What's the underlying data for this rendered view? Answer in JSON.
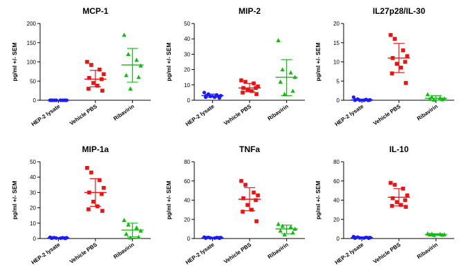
{
  "colors": {
    "HEP-2 lysate": "#1a1aff",
    "Vehicle PBS": "#ee1111",
    "Ribavirin": "#11bb11",
    "axis": "#000000"
  },
  "chart_data": [
    {
      "type": "scatter",
      "title": "MCP-1",
      "ylabel": "pg/ml +/- SEM",
      "ylim": [
        0,
        200
      ],
      "yticks": [
        "0",
        "50",
        "100",
        "150",
        "200"
      ],
      "categories": [
        "HEP-2 lysate",
        "Vehicle PBS",
        "Ribavirin"
      ],
      "series": [
        {
          "name": "HEP-2 lysate",
          "marker": "circle",
          "values": [
            0,
            0,
            0,
            0,
            0,
            0,
            0,
            0,
            0,
            0
          ],
          "mean": 0,
          "err": [
            0,
            0
          ]
        },
        {
          "name": "Vehicle PBS",
          "marker": "square",
          "values": [
            100,
            92,
            80,
            68,
            58,
            55,
            45,
            38,
            30,
            25
          ],
          "mean": 55,
          "err": [
            35,
            78
          ]
        },
        {
          "name": "Ribavirin",
          "marker": "triangle",
          "values": [
            170,
            120,
            105,
            90,
            65,
            60,
            30
          ],
          "mean": 92,
          "err": [
            47,
            135
          ]
        }
      ]
    },
    {
      "type": "scatter",
      "title": "MIP-2",
      "ylabel": "pg/ml +/- SEM",
      "ylim": [
        0,
        50
      ],
      "yticks": [
        "0",
        "10",
        "20",
        "30",
        "40",
        "50"
      ],
      "categories": [
        "HEP-2 lysate",
        "Vehicle PBS",
        "Ribavirin"
      ],
      "series": [
        {
          "name": "HEP-2 lysate",
          "marker": "circle",
          "values": [
            5,
            4,
            3.5,
            3,
            3,
            2.5,
            2.5,
            2,
            2,
            1.5
          ],
          "mean": 3,
          "err": [
            2,
            4
          ]
        },
        {
          "name": "Vehicle PBS",
          "marker": "square",
          "values": [
            13,
            12,
            11,
            9,
            8,
            8,
            7,
            6,
            5,
            4
          ],
          "mean": 8,
          "err": [
            5.5,
            11
          ]
        },
        {
          "name": "Ribavirin",
          "marker": "triangle",
          "values": [
            39,
            20,
            18,
            15,
            12,
            6,
            4
          ],
          "mean": 15,
          "err": [
            3,
            26.5
          ]
        }
      ]
    },
    {
      "type": "scatter",
      "title": "IL27p28/IL-30",
      "ylabel": "pg/ml +/- SEM",
      "ylim": [
        0,
        20
      ],
      "yticks": [
        "0",
        "5",
        "10",
        "15",
        "20"
      ],
      "categories": [
        "HEP-2 lysate",
        "Vehicle PBS",
        "Ribavirin"
      ],
      "series": [
        {
          "name": "HEP-2 lysate",
          "marker": "circle",
          "values": [
            0.8,
            0.3,
            0.2,
            0.1,
            0.1,
            0,
            0,
            0,
            0,
            0
          ],
          "mean": 0.1,
          "err": [
            0,
            0.3
          ]
        },
        {
          "name": "Vehicle PBS",
          "marker": "square",
          "values": [
            17,
            16,
            13,
            11.5,
            11,
            10,
            9.5,
            8.5,
            7,
            4.5
          ],
          "mean": 11,
          "err": [
            7.2,
            14.8
          ]
        },
        {
          "name": "Ribavirin",
          "marker": "triangle",
          "values": [
            1.5,
            0.8,
            0.6,
            0.4,
            0.3,
            0.2,
            0.1
          ],
          "mean": 0.5,
          "err": [
            0,
            1.2
          ]
        }
      ]
    },
    {
      "type": "scatter",
      "title": "MIP-1a",
      "ylabel": "pg/ml +/- SEM",
      "ylim": [
        0,
        50
      ],
      "yticks": [
        "0",
        "10",
        "20",
        "30",
        "40",
        "50"
      ],
      "categories": [
        "HEP-2 lysate",
        "Vehicle PBS",
        "Ribavirin"
      ],
      "series": [
        {
          "name": "HEP-2 lysate",
          "marker": "circle",
          "values": [
            0.8,
            0.6,
            0.5,
            0.5,
            0.4,
            0.3,
            0.3,
            0.2,
            0.2,
            0.1
          ],
          "mean": 0.4,
          "err": [
            0.2,
            0.6
          ]
        },
        {
          "name": "Vehicle PBS",
          "marker": "square",
          "values": [
            46,
            43,
            38,
            33,
            30,
            29,
            24,
            21,
            19,
            18
          ],
          "mean": 30,
          "err": [
            21,
            39
          ]
        },
        {
          "name": "Ribavirin",
          "marker": "triangle",
          "values": [
            12,
            9,
            7,
            5,
            3,
            1,
            0.5
          ],
          "mean": 5.5,
          "err": [
            1,
            10
          ]
        }
      ]
    },
    {
      "type": "scatter",
      "title": "TNFa",
      "ylabel": "pg/ml +/- SEM",
      "ylim": [
        0,
        80
      ],
      "yticks": [
        "0",
        "20",
        "40",
        "60",
        "80"
      ],
      "categories": [
        "HEP-2 lysate",
        "Vehicle PBS",
        "Ribavirin"
      ],
      "series": [
        {
          "name": "HEP-2 lysate",
          "marker": "circle",
          "values": [
            1.5,
            1.2,
            1,
            1,
            0.8,
            0.8,
            0.6,
            0.5,
            0.4,
            0.3
          ],
          "mean": 0.8,
          "err": [
            0.3,
            1.3
          ]
        },
        {
          "name": "Vehicle PBS",
          "marker": "square",
          "values": [
            60,
            56,
            48,
            45,
            42,
            40,
            35,
            30,
            28,
            18
          ],
          "mean": 41,
          "err": [
            29,
            53
          ]
        },
        {
          "name": "Ribavirin",
          "marker": "triangle",
          "values": [
            15,
            13,
            12,
            10,
            8,
            6,
            4
          ],
          "mean": 10,
          "err": [
            5,
            14
          ]
        }
      ]
    },
    {
      "type": "scatter",
      "title": "IL-10",
      "ylabel": "pg/ml +/- SEM",
      "ylim": [
        0,
        80
      ],
      "yticks": [
        "0",
        "20",
        "40",
        "60",
        "80"
      ],
      "categories": [
        "HEP-2 lysate",
        "Vehicle PBS",
        "Ribavirin"
      ],
      "series": [
        {
          "name": "HEP-2 lysate",
          "marker": "circle",
          "values": [
            2,
            1.5,
            1.2,
            1,
            0.8,
            0.8,
            0.6,
            0.5,
            0.4,
            0.3
          ],
          "mean": 1,
          "err": [
            0.3,
            1.7
          ]
        },
        {
          "name": "Vehicle PBS",
          "marker": "square",
          "values": [
            58,
            56,
            52,
            45,
            42,
            40,
            38,
            35,
            34,
            33
          ],
          "mean": 43,
          "err": [
            34,
            52
          ]
        },
        {
          "name": "Ribavirin",
          "marker": "triangle",
          "values": [
            5,
            4.8,
            4.5,
            4.2,
            4,
            3.8,
            3.5
          ],
          "mean": 4.2,
          "err": [
            3.5,
            5
          ]
        }
      ]
    }
  ]
}
